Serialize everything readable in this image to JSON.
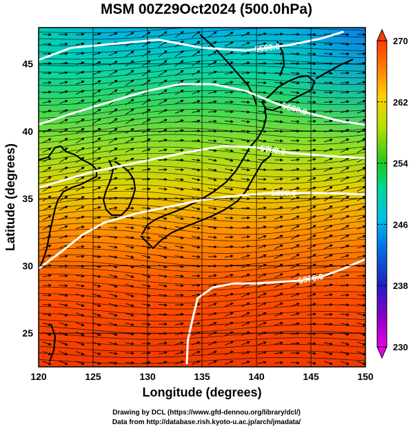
{
  "title": "MSM 00Z29Oct2024 (500.0hPa)",
  "credits": {
    "line1": "Drawing by DCL (https://www.gfd-dennou.org/library/dcl/)",
    "line2": "Data from http://database.rish.kyoto-u.ac.jp/arch/jmadata/"
  },
  "colors": {
    "cold": "#e600e6",
    "warm": "#ff3b00"
  },
  "chart_data": {
    "type": "heatmap",
    "title": "MSM 00Z29Oct2024 (500.0hPa)",
    "xlabel": "Longitude (degrees)",
    "ylabel": "Latitude  (degrees)",
    "xlim": [
      120,
      150
    ],
    "ylim": [
      22.5,
      47.7
    ],
    "xticks": [
      120,
      125,
      130,
      135,
      140,
      145,
      150
    ],
    "yticks": [
      25,
      30,
      35,
      40,
      45
    ],
    "grid": true,
    "field": "temperature (shaded), geopotential height (white contours), wind (streamlines)",
    "colorbar": {
      "ticks": [
        230,
        238,
        246,
        254,
        262,
        270
      ],
      "range": [
        230,
        270
      ],
      "placement": "right"
    },
    "contours": [
      {
        "label": "5500.0",
        "points": [
          [
            120,
            45.3
          ],
          [
            123,
            46.2
          ],
          [
            127,
            46.5
          ],
          [
            131,
            46.8
          ],
          [
            135,
            46.2
          ],
          [
            139,
            46.0
          ],
          [
            143,
            46.4
          ],
          [
            146,
            46.9
          ],
          [
            148,
            47.4
          ]
        ]
      },
      {
        "label": "5600.0",
        "points": [
          [
            120,
            40.5
          ],
          [
            123,
            41.3
          ],
          [
            127,
            42.3
          ],
          [
            130,
            43.0
          ],
          [
            133,
            43.5
          ],
          [
            136,
            43.5
          ],
          [
            139,
            43.0
          ],
          [
            142,
            42.0
          ],
          [
            145,
            41.3
          ],
          [
            148,
            40.7
          ],
          [
            150,
            40.5
          ]
        ]
      },
      {
        "label": "5700.0",
        "points": [
          [
            120,
            35.8
          ],
          [
            122,
            36.3
          ],
          [
            125,
            37.0
          ],
          [
            128,
            37.5
          ],
          [
            131,
            38.0
          ],
          [
            134,
            38.5
          ],
          [
            137,
            38.9
          ],
          [
            140,
            38.8
          ],
          [
            143,
            38.4
          ],
          [
            146,
            38.2
          ],
          [
            150,
            38.0
          ]
        ]
      },
      {
        "label": "5800.0",
        "points": [
          [
            120,
            29.8
          ],
          [
            122,
            31.0
          ],
          [
            124,
            32.3
          ],
          [
            126,
            33.2
          ],
          [
            129,
            33.9
          ],
          [
            132,
            34.4
          ],
          [
            135,
            34.9
          ],
          [
            138,
            35.2
          ],
          [
            141,
            35.4
          ],
          [
            144,
            35.4
          ],
          [
            147,
            35.4
          ],
          [
            150,
            35.3
          ]
        ]
      },
      {
        "label": "5900.0",
        "points": [
          [
            133.6,
            22.7
          ],
          [
            133.7,
            24.5
          ],
          [
            134.2,
            26.3
          ],
          [
            134.6,
            27.6
          ],
          [
            136,
            28.4
          ],
          [
            138,
            28.7
          ],
          [
            140,
            28.7
          ],
          [
            142,
            28.8
          ],
          [
            144,
            28.9
          ],
          [
            146,
            29.2
          ],
          [
            148,
            29.8
          ],
          [
            150,
            30.5
          ]
        ]
      }
    ]
  }
}
